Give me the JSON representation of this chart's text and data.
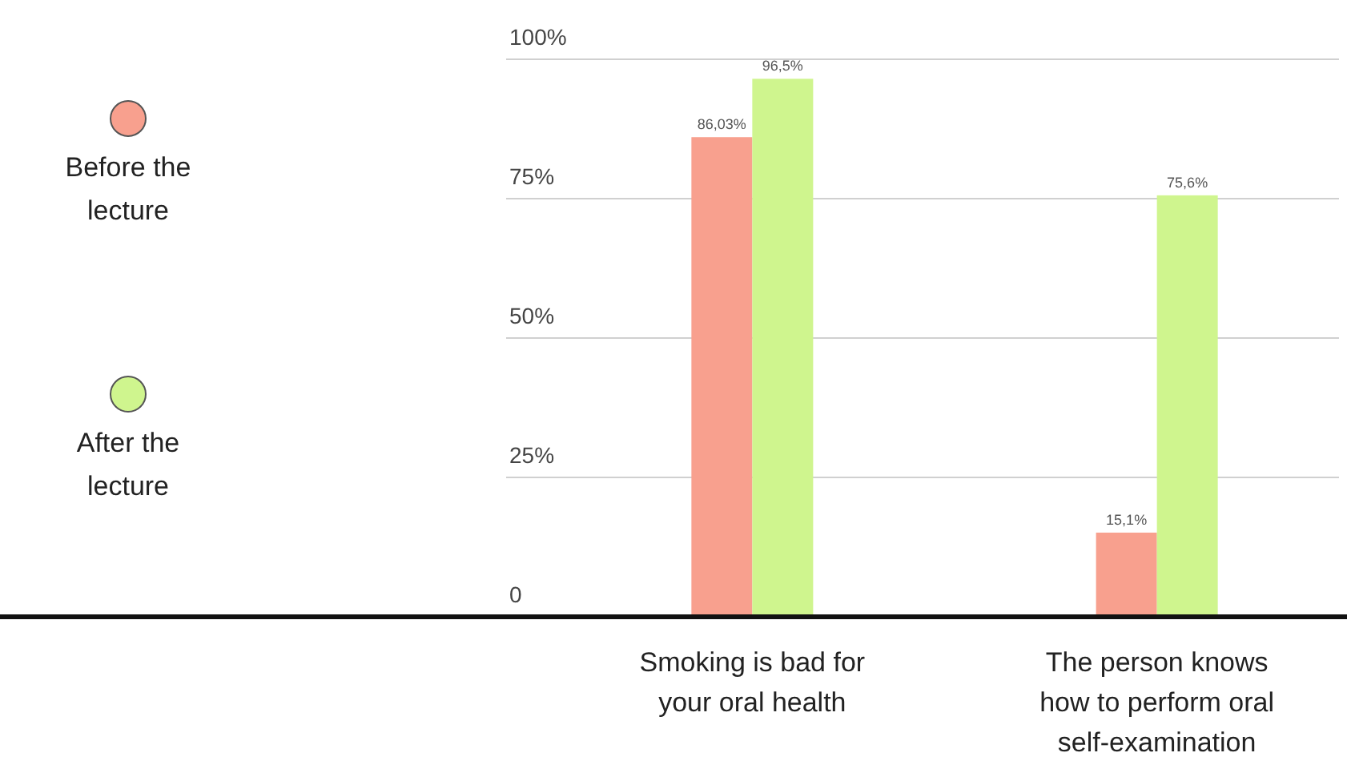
{
  "chart_data": {
    "type": "bar",
    "categories": [
      "Smoking is bad for your oral health",
      "The person knows how to perform oral self-examination"
    ],
    "series": [
      {
        "name": "Before the lecture",
        "color": "#f8a08e",
        "values": [
          86.03,
          15.1
        ],
        "value_labels": [
          "86,03%",
          "15,1%"
        ]
      },
      {
        "name": "After the lecture",
        "color": "#cff58e",
        "values": [
          96.5,
          75.6
        ],
        "value_labels": [
          "96,5%",
          "75,6%"
        ]
      }
    ],
    "ylim": [
      0,
      100
    ],
    "yticks": [
      {
        "value": 0,
        "label": "0"
      },
      {
        "value": 25,
        "label": "25%"
      },
      {
        "value": 50,
        "label": "50%"
      },
      {
        "value": 75,
        "label": "75%"
      },
      {
        "value": 100,
        "label": "100%"
      }
    ],
    "grid": "y",
    "legend": "left"
  }
}
